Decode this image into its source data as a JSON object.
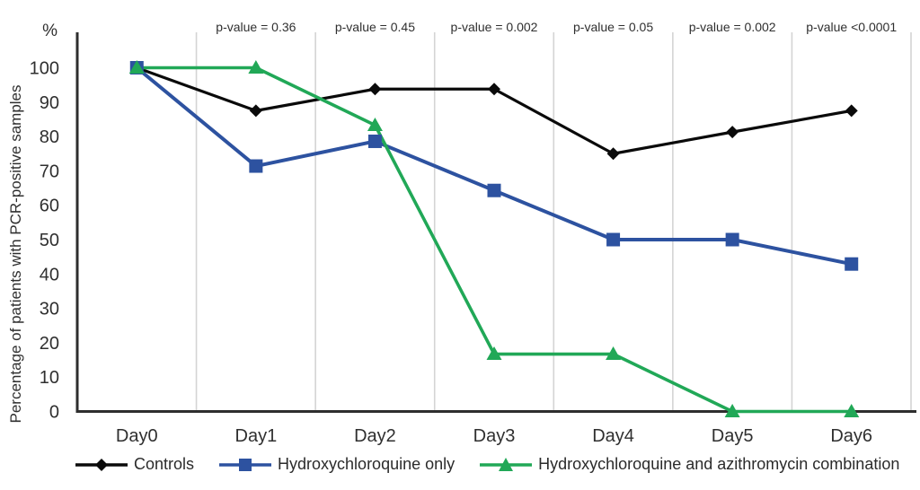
{
  "chart_data": {
    "type": "line",
    "title": "",
    "xlabel": "",
    "ylabel": "Percentage of patients with PCR-positive samples",
    "y_unit": "%",
    "categories": [
      "Day0",
      "Day1",
      "Day2",
      "Day3",
      "Day4",
      "Day5",
      "Day6"
    ],
    "ylim": [
      0,
      100
    ],
    "yticks": [
      0,
      10,
      20,
      30,
      40,
      50,
      60,
      70,
      80,
      90,
      100
    ],
    "grid": "vertical-only",
    "legend_position": "bottom",
    "p_values": [
      "p-value = 0.36",
      "p-value = 0.45",
      "p-value = 0.002",
      "p-value = 0.05",
      "p-value = 0.002",
      "p-value <0.0001"
    ],
    "series": [
      {
        "name": "Controls",
        "marker": "diamond",
        "color": "#0a0a0a",
        "values": [
          100,
          87.5,
          93.8,
          93.8,
          75,
          81.3,
          87.5
        ]
      },
      {
        "name": "Hydroxychloroquine only",
        "marker": "square",
        "color": "#2d52a0",
        "values": [
          100,
          71.4,
          78.6,
          64.3,
          50,
          50,
          42.9
        ]
      },
      {
        "name": "Hydroxychloroquine and azithromycin combination",
        "marker": "triangle",
        "color": "#21a857",
        "values": [
          100,
          100,
          83.3,
          16.7,
          16.7,
          0,
          0
        ]
      }
    ],
    "colors": {
      "gridline": "#d4d4d4",
      "axis": "#2e2e2e",
      "text": "#2f2f2f"
    }
  }
}
